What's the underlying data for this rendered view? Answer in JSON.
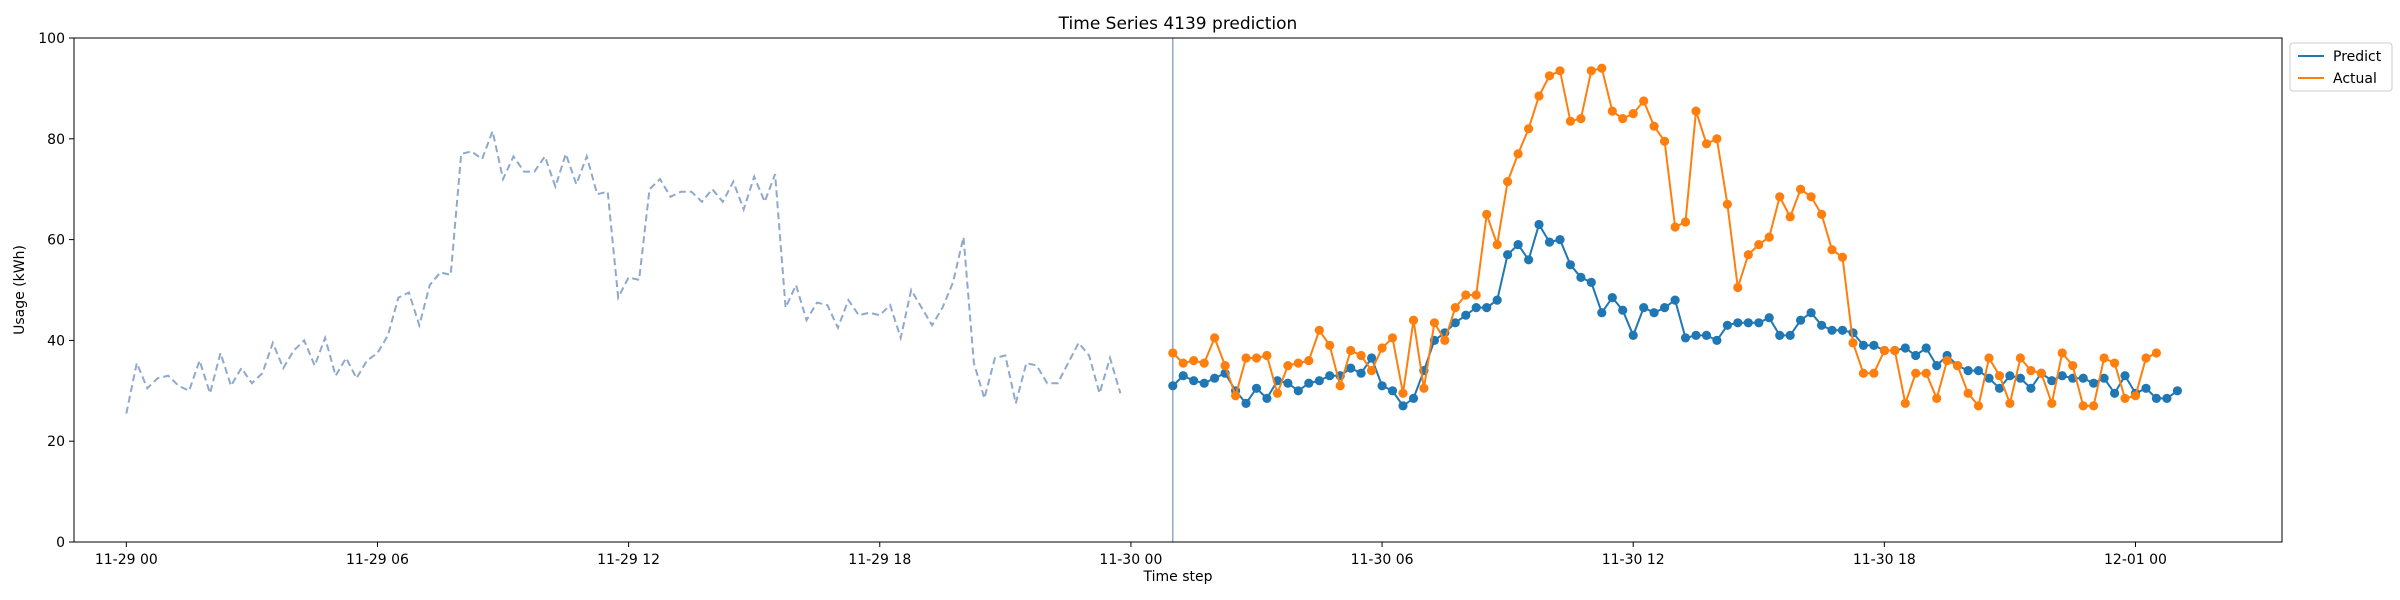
{
  "chart_data": {
    "type": "line",
    "title": "Time Series 4139 prediction",
    "xlabel": "Time step",
    "ylabel": "Usage (kWh)",
    "ylim": [
      0,
      100
    ],
    "xlim": [
      "2021-11-28 22:45",
      "2021-12-01 03:30"
    ],
    "yticks": [
      0,
      20,
      40,
      60,
      80,
      100
    ],
    "xticks": [
      {
        "value": "2021-11-29 00:00",
        "label": "11-29 00"
      },
      {
        "value": "2021-11-29 06:00",
        "label": "11-29 06"
      },
      {
        "value": "2021-11-29 12:00",
        "label": "11-29 12"
      },
      {
        "value": "2021-11-29 18:00",
        "label": "11-29 18"
      },
      {
        "value": "2021-11-30 00:00",
        "label": "11-30 00"
      },
      {
        "value": "2021-11-30 06:00",
        "label": "11-30 06"
      },
      {
        "value": "2021-11-30 12:00",
        "label": "11-30 12"
      },
      {
        "value": "2021-11-30 18:00",
        "label": "11-30 18"
      },
      {
        "value": "2021-12-01 00:00",
        "label": "12-01 00"
      }
    ],
    "grid": false,
    "legend_position": "outside top-right",
    "vline": "2021-11-30 01:00",
    "history": {
      "start": "2021-11-29 00:00",
      "step_minutes": 15,
      "color": "#8ea9cc",
      "style": "dashed",
      "values": [
        25.5,
        35.5,
        30.5,
        32.5,
        33,
        31,
        30,
        36,
        29.5,
        37.5,
        31,
        34.5,
        31.5,
        33.5,
        39.5,
        34.5,
        38,
        40,
        35,
        40.5,
        33,
        36.5,
        32.5,
        36,
        37.5,
        41,
        48.5,
        49.5,
        43,
        51,
        53.5,
        53,
        77,
        77.5,
        76,
        81.5,
        72,
        76.5,
        73.5,
        73.5,
        76.5,
        70.5,
        77,
        71,
        76.5,
        69,
        69.5,
        48.5,
        52.5,
        52,
        70,
        72,
        68.5,
        69.5,
        69.5,
        67.5,
        70,
        67.5,
        71.5,
        66,
        72.5,
        67.5,
        73,
        46.5,
        51,
        44,
        47.5,
        47,
        42.5,
        48,
        45,
        45.5,
        45,
        47,
        40.5,
        50,
        46.5,
        43,
        46.5,
        51.5,
        60.5,
        35.5,
        28.5,
        36.5,
        37,
        27.5,
        35.5,
        35,
        31.5,
        31.5,
        35.5,
        39.5,
        37,
        29.5,
        36.5,
        29.5
      ]
    },
    "series": [
      {
        "name": "Predict",
        "color": "#1f77b4",
        "start": "2021-11-30 01:00",
        "step_minutes": 15,
        "values": [
          31,
          33,
          32,
          31.5,
          32.5,
          33.5,
          30,
          27.5,
          30.5,
          28.5,
          32,
          31.5,
          30,
          31.5,
          32,
          33,
          33,
          34.5,
          33.5,
          36.5,
          31,
          30,
          27,
          28.5,
          34,
          40,
          41.5,
          43.5,
          45,
          46.5,
          46.5,
          48,
          57,
          59,
          56,
          63,
          59.5,
          60,
          55,
          52.5,
          51.5,
          45.5,
          48.5,
          46,
          41,
          46.5,
          45.5,
          46.5,
          48,
          40.5,
          41,
          41,
          40,
          43,
          43.5,
          43.5,
          43.5,
          44.5,
          41,
          41,
          44,
          45.5,
          43,
          42,
          42,
          41.5,
          39,
          39,
          38,
          38,
          38.5,
          37,
          38.5,
          35,
          37,
          35,
          34,
          34,
          32.5,
          30.5,
          33,
          32.5,
          30.5,
          33.5,
          32,
          33,
          32.5,
          32.5,
          31.5,
          32.5,
          29.5,
          33,
          29.5,
          30.5,
          28.5,
          28.5,
          30
        ]
      },
      {
        "name": "Actual",
        "color": "#ff7f0e",
        "start": "2021-11-30 01:00",
        "step_minutes": 15,
        "values": [
          37.5,
          35.5,
          36,
          35.5,
          40.5,
          35,
          29,
          36.5,
          36.5,
          37,
          29.5,
          35,
          35.5,
          36,
          42,
          39,
          31,
          38,
          37,
          34,
          38.5,
          40.5,
          29.5,
          44,
          30.5,
          43.5,
          40,
          46.5,
          49,
          49,
          65,
          59,
          71.5,
          77,
          82,
          88.5,
          92.5,
          93.5,
          83.5,
          84,
          93.5,
          94,
          85.5,
          84,
          85,
          87.5,
          82.5,
          79.5,
          62.5,
          63.5,
          85.5,
          79,
          80,
          67,
          50.5,
          57,
          59,
          60.5,
          68.5,
          64.5,
          70,
          68.5,
          65,
          58,
          56.5,
          39.5,
          33.5,
          33.5,
          38,
          38,
          27.5,
          33.5,
          33.5,
          28.5,
          36,
          35,
          29.5,
          27,
          36.5,
          33,
          27.5,
          36.5,
          34,
          33.5,
          27.5,
          37.5,
          35,
          27,
          27,
          36.5,
          35.5,
          28.5,
          29,
          36.5,
          37.5
        ]
      }
    ]
  }
}
